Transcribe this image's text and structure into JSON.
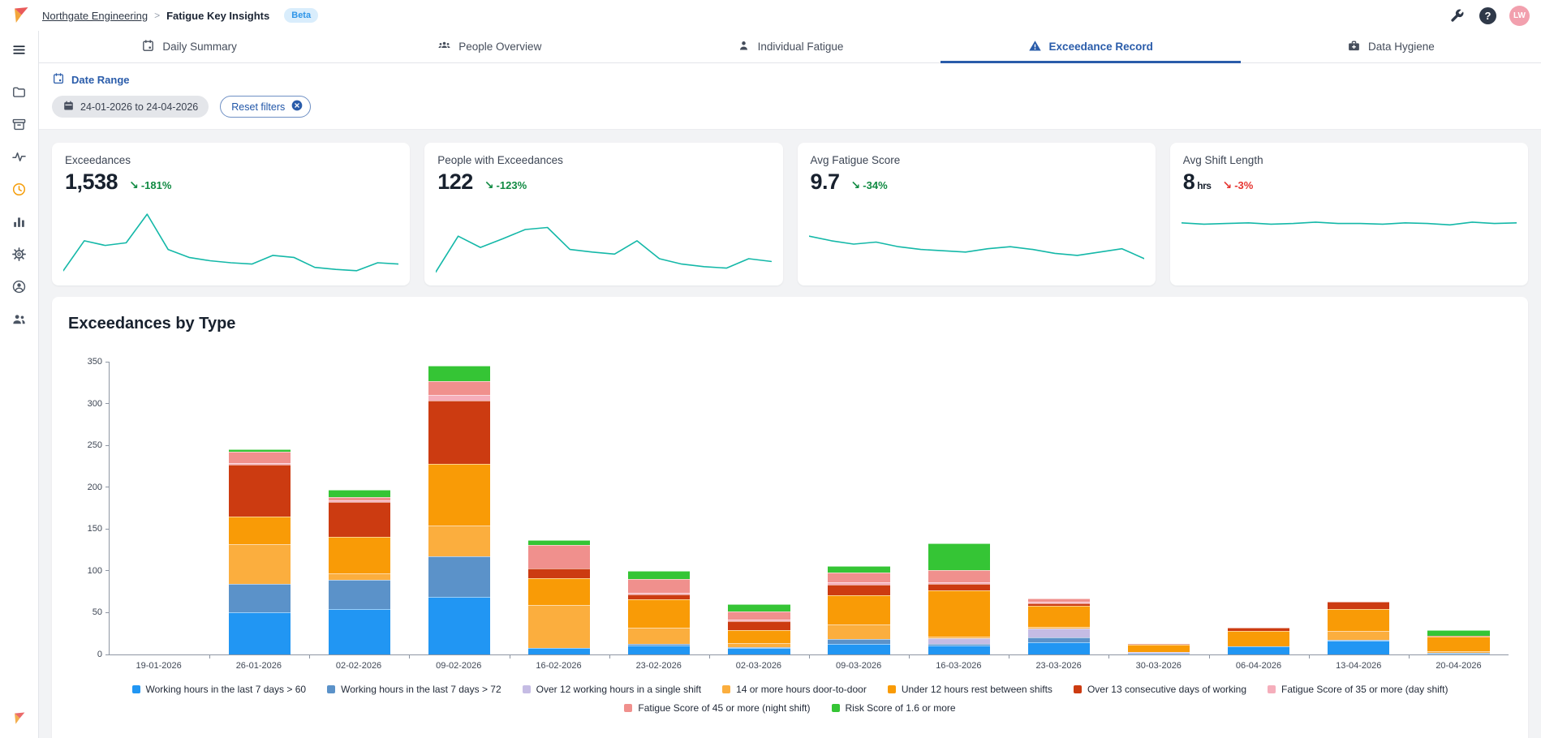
{
  "header": {
    "breadcrumb_org": "Northgate Engineering",
    "breadcrumb_sep": ">",
    "breadcrumb_page": "Fatigue Key Insights",
    "beta_badge": "Beta",
    "help_glyph": "?",
    "avatar_initials": "LW",
    "action_icons": [
      "wrench-icon",
      "help-icon",
      "avatar"
    ]
  },
  "tabs": [
    {
      "label": "Daily Summary",
      "icon": "calendar-icon",
      "active": false
    },
    {
      "label": "People Overview",
      "icon": "people-group-icon",
      "active": false
    },
    {
      "label": "Individual Fatigue",
      "icon": "person-icon",
      "active": false
    },
    {
      "label": "Exceedance Record",
      "icon": "warning-triangle-icon",
      "active": true
    },
    {
      "label": "Data Hygiene",
      "icon": "toolbox-icon",
      "active": false
    }
  ],
  "sidebar": {
    "items": [
      {
        "icon": "menu-icon"
      },
      {
        "icon": "folder-icon"
      },
      {
        "icon": "archive-box-icon"
      },
      {
        "icon": "activity-icon"
      },
      {
        "icon": "clock-icon",
        "accent": true
      },
      {
        "icon": "bar-chart-icon"
      },
      {
        "icon": "settings-gear-icon"
      },
      {
        "icon": "user-circle-icon"
      },
      {
        "icon": "users-icon"
      }
    ],
    "footer_icon": "brand-logo"
  },
  "filters": {
    "section_label": "Date Range",
    "date_range_chip": "24-01-2026 to 24-04-2026",
    "reset_button": "Reset filters"
  },
  "kpis": [
    {
      "title": "Exceedances",
      "value": "1,538",
      "unit": "",
      "change": "-181%",
      "arrow": "↘",
      "change_color": "green",
      "spark": [
        10,
        55,
        48,
        52,
        95,
        42,
        30,
        25,
        22,
        20,
        33,
        30,
        15,
        12,
        10,
        22,
        20
      ]
    },
    {
      "title": "People with Exceedances",
      "value": "122",
      "unit": "",
      "change": "-123%",
      "arrow": "↘",
      "change_color": "green",
      "spark": [
        8,
        62,
        45,
        58,
        72,
        75,
        42,
        38,
        35,
        55,
        28,
        20,
        16,
        14,
        28,
        24
      ]
    },
    {
      "title": "Avg Fatigue Score",
      "value": "9.7",
      "unit": "",
      "change": "-34%",
      "arrow": "↘",
      "change_color": "green",
      "spark": [
        62,
        55,
        50,
        53,
        46,
        42,
        40,
        38,
        43,
        46,
        42,
        36,
        33,
        38,
        43,
        28
      ]
    },
    {
      "title": "Avg Shift Length",
      "value": "8",
      "unit": "hrs",
      "change": "-3%",
      "arrow": "↘",
      "change_color": "red",
      "spark": [
        82,
        80,
        81,
        82,
        80,
        81,
        83,
        81,
        81,
        80,
        82,
        81,
        79,
        83,
        81,
        82
      ]
    }
  ],
  "chart_data": {
    "type": "bar",
    "stacked": true,
    "title": "Exceedances by Type",
    "xlabel": "",
    "ylabel": "",
    "ylim": [
      0,
      350
    ],
    "ytick_step": 50,
    "grid": false,
    "legend_position": "bottom",
    "categories": [
      "19-01-2026",
      "26-01-2026",
      "02-02-2026",
      "09-02-2026",
      "16-02-2026",
      "23-02-2026",
      "02-03-2026",
      "09-03-2026",
      "16-03-2026",
      "23-03-2026",
      "30-03-2026",
      "06-04-2026",
      "13-04-2026",
      "20-04-2026"
    ],
    "series": [
      {
        "name": "Working hours in the last 7 days > 60",
        "color": "#2196F3",
        "values": [
          0,
          50,
          54,
          69,
          8,
          11,
          8,
          13,
          11,
          15,
          1,
          10,
          17,
          1
        ]
      },
      {
        "name": "Working hours in the last 7 days > 72",
        "color": "#5B92C9",
        "values": [
          0,
          34,
          35,
          48,
          0,
          2,
          1,
          5,
          2,
          5,
          0,
          0,
          1,
          1
        ]
      },
      {
        "name": "Over 12 working hours in a single shift",
        "color": "#C5BCE4",
        "values": [
          0,
          0,
          0,
          0,
          0,
          0,
          0,
          0,
          6,
          11,
          2,
          0,
          0,
          0
        ]
      },
      {
        "name": "14 or more hours door-to-door",
        "color": "#FBAE3E",
        "values": [
          0,
          48,
          8,
          37,
          51,
          19,
          5,
          18,
          2,
          2,
          0,
          0,
          10,
          2
        ]
      },
      {
        "name": "Under 12 hours rest between shifts",
        "color": "#F99B06",
        "values": [
          0,
          33,
          44,
          74,
          32,
          34,
          15,
          35,
          56,
          25,
          9,
          18,
          26,
          17
        ]
      },
      {
        "name": "Over 13 consecutive days of working",
        "color": "#CC3B11",
        "values": [
          0,
          62,
          41,
          75,
          12,
          6,
          11,
          12,
          7,
          3,
          1,
          4,
          9,
          1
        ]
      },
      {
        "name": "Fatigue Score of 35 or more (day shift)",
        "color": "#F5AEBB",
        "values": [
          0,
          2,
          2,
          7,
          0,
          2,
          2,
          3,
          2,
          2,
          0,
          0,
          0,
          0
        ]
      },
      {
        "name": "Fatigue Score of 45 or more (night shift)",
        "color": "#F0908D",
        "values": [
          0,
          13,
          4,
          17,
          28,
          16,
          9,
          12,
          15,
          4,
          0,
          0,
          0,
          0
        ]
      },
      {
        "name": "Risk Score of 1.6 or more",
        "color": "#35C535",
        "values": [
          0,
          3,
          9,
          18,
          6,
          10,
          9,
          8,
          32,
          0,
          0,
          0,
          0,
          7
        ]
      }
    ]
  },
  "colors": {
    "accent_blue": "#2A5CAA",
    "spark_teal": "#14B8A8",
    "change_green": "#108A42",
    "change_red": "#E63430",
    "icon_gray": "#4B5563",
    "icon_dark": "#2F3949",
    "clock_accent": "#F59E0B"
  }
}
